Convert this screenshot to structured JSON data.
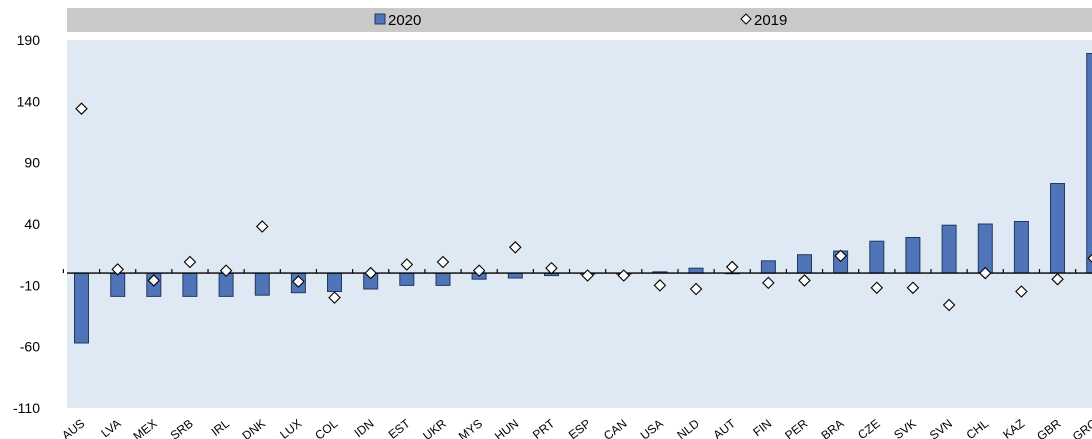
{
  "chart_data": {
    "type": "bar",
    "categories": [
      "AUS",
      "LVA",
      "MEX",
      "SRB",
      "IRL",
      "DNK",
      "LUX",
      "COL",
      "IDN",
      "EST",
      "UKR",
      "MYS",
      "HUN",
      "PRT",
      "ESP",
      "CAN",
      "USA",
      "NLD",
      "AUT",
      "FIN",
      "PER",
      "BRA",
      "CZE",
      "SVK",
      "SVN",
      "CHL",
      "KAZ",
      "GBR",
      "GRC"
    ],
    "series": [
      {
        "name": "2020",
        "marker": "bar",
        "values": [
          -57,
          -19,
          -19,
          -19,
          -19,
          -18,
          -16,
          -15,
          -13,
          -10,
          -10,
          -5,
          -4,
          -2,
          -1,
          -1,
          1,
          4,
          0,
          10,
          15,
          18,
          26,
          29,
          39,
          40,
          42,
          73,
          179
        ]
      },
      {
        "name": "2019",
        "marker": "diamond",
        "values": [
          134,
          3,
          -6,
          9,
          2,
          38,
          -7,
          -20,
          0,
          7,
          9,
          2,
          21,
          4,
          -2,
          -2,
          -10,
          -13,
          5,
          -8,
          -6,
          14,
          -12,
          -12,
          -26,
          0,
          -15,
          -5,
          12
        ]
      }
    ],
    "ylim": [
      -110,
      190
    ],
    "yticks": [
      190,
      140,
      90,
      40,
      -10,
      -60,
      -110
    ],
    "grid": false,
    "legend_position": "top",
    "colors": {
      "bar": "#4f74b8",
      "bar_edge": "#23395f",
      "plot_bg": "#dfe9f3",
      "legend_bg": "#c9c9c9",
      "diamond_fill": "#ffffff",
      "diamond_edge": "#000000"
    }
  }
}
